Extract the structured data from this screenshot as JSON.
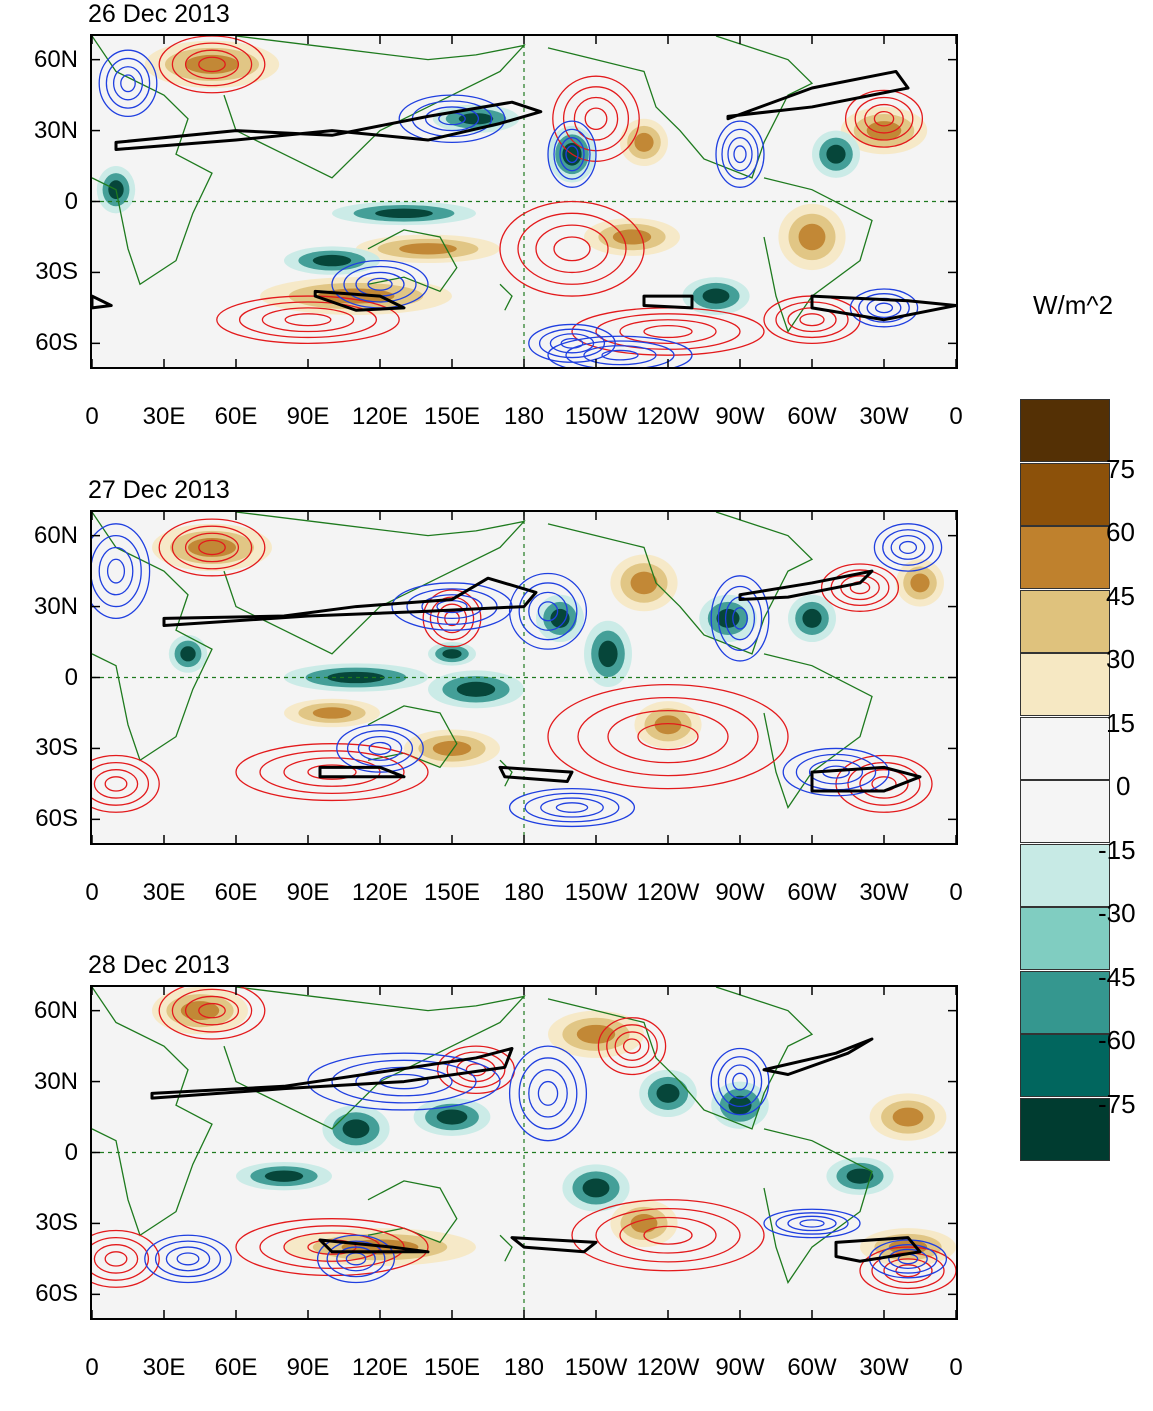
{
  "units_label": "W/m^2",
  "panels": [
    {
      "title": "26 Dec 2013"
    },
    {
      "title": "27 Dec 2013"
    },
    {
      "title": "28 Dec 2013"
    }
  ],
  "lat_labels": [
    "60N",
    "30N",
    "0",
    "30S",
    "60S"
  ],
  "lat_values": [
    60,
    30,
    0,
    -30,
    -60
  ],
  "lon_labels": [
    "0",
    "30E",
    "60E",
    "90E",
    "120E",
    "150E",
    "180",
    "150W",
    "120W",
    "90W",
    "60W",
    "30W",
    "0"
  ],
  "lon_values": [
    0,
    30,
    60,
    90,
    120,
    150,
    180,
    210,
    240,
    270,
    300,
    330,
    360
  ],
  "map_extent": {
    "lon": [
      0,
      360
    ],
    "lat": [
      -70,
      70
    ]
  },
  "colorbar": {
    "labels": [
      "75",
      "60",
      "45",
      "30",
      "15",
      "0",
      "-15",
      "-30",
      "-45",
      "-60",
      "-75"
    ],
    "colors": [
      "#543005",
      "#8c510a",
      "#bf812d",
      "#dfc27d",
      "#f6e8c3",
      "#f5f5f5",
      "#f5f5f5",
      "#c7eae5",
      "#80cdc1",
      "#35978f",
      "#01665e",
      "#003c30"
    ]
  },
  "contour_colors": {
    "positive": "#e31a1c",
    "negative": "#1f3fe0",
    "jet": "#000000",
    "coast": "#1e7a1e",
    "grid": "#1e7a1e"
  }
}
